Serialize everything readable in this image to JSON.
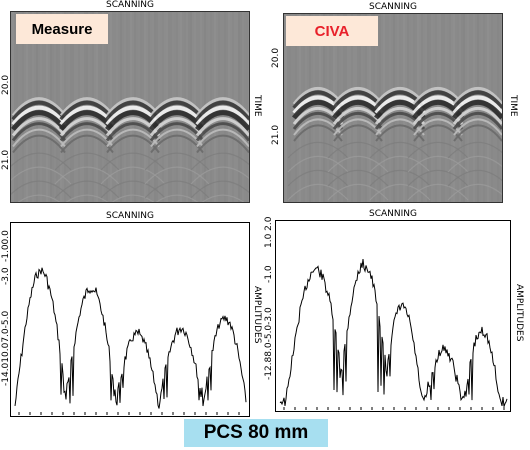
{
  "top_left": {
    "axis_title": "SCANNING",
    "side_label": "TIME",
    "badge": "Measure",
    "badge_color": "#000000",
    "ticks": [
      "20.0",
      "21.0"
    ]
  },
  "top_right": {
    "axis_title": "SCANNING",
    "side_label": "TIME",
    "badge": "CIVA",
    "badge_color": "#e8202a",
    "ticks": [
      "20.0",
      "21.0"
    ]
  },
  "bottom_left": {
    "axis_title": "SCANNING",
    "side_label": "AMPLITUDES",
    "ticks": [
      "-1.00.0",
      "-3.0",
      "-14.010.07.0-5.0"
    ]
  },
  "bottom_right": {
    "axis_title": "SCANNING",
    "side_label": "AMPLITUDES",
    "ticks": [
      "1.0 2.0",
      "-1.0",
      "-12.88.0-5.0-3.0"
    ]
  },
  "caption": "PCS 80 mm",
  "caption_bg": "#a7dff0"
}
